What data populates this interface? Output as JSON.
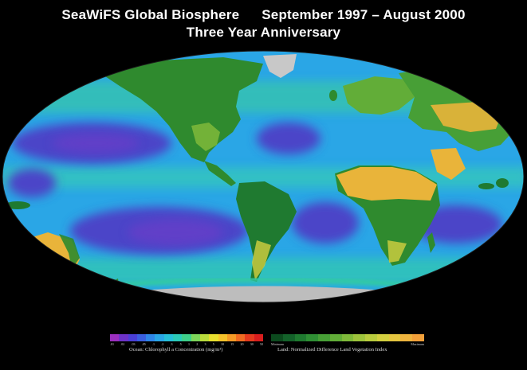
{
  "title": {
    "line1_left": "SeaWiFS Global Biosphere",
    "line1_right": "September 1997 – August 2000",
    "line2": "Three Year Anniversary"
  },
  "legend": {
    "ocean": {
      "caption": "Ocean:  Chlorophyll a Concentration (mg/m³)",
      "ticks": [
        ".01",
        ".02",
        ".03",
        ".05",
        ".1",
        ".2",
        ".3",
        ".5",
        "1",
        "2",
        "3",
        "5",
        "10",
        "15",
        "20",
        "30",
        "50"
      ],
      "colors": [
        "#9b2fbf",
        "#6d32c8",
        "#4a3fd6",
        "#3a5fe0",
        "#2f86e8",
        "#2aa6e6",
        "#27bfd8",
        "#2ccab8",
        "#3fcf8a",
        "#7ed65a",
        "#b9dc3c",
        "#e7de2e",
        "#f6c22a",
        "#f59a26",
        "#ef6b22",
        "#e43a1e",
        "#d81e1e"
      ]
    },
    "land": {
      "caption": "Land:  Normalized Difference Land Vegetation Index",
      "min_label": "Minimum",
      "max_label": "Maximum",
      "colors": [
        "#0c4a1e",
        "#14622a",
        "#1f7a30",
        "#2f8f34",
        "#479f36",
        "#62ad38",
        "#7fb93a",
        "#9dc33c",
        "#b9cb3e",
        "#d3cf40",
        "#e4c540",
        "#eeb43e",
        "#f2a03a"
      ]
    }
  },
  "map": {
    "ocean_deep_color": "#4b45c8",
    "ocean_mid_color": "#2aa6e6",
    "ocean_coastal_color": "#30c9a4",
    "land_green_color": "#2f8a2e",
    "land_yellow_color": "#e9b43a",
    "ice_color": "#c8c8c8"
  }
}
